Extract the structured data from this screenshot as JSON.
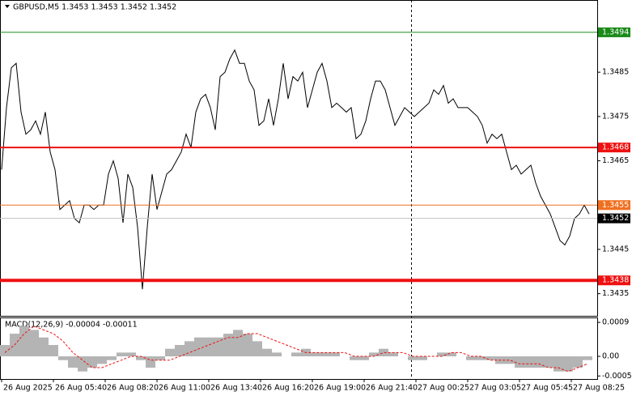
{
  "chart_data": [
    {
      "type": "line",
      "title": "GBPUSD,M5  1.3453 1.3453 1.3452 1.3452",
      "color": "#000000",
      "values": [
        1.3463,
        1.3477,
        1.3486,
        1.3487,
        1.3476,
        1.3471,
        1.3472,
        1.3474,
        1.3471,
        1.3476,
        1.3467,
        1.3463,
        1.3454,
        1.3455,
        1.3456,
        1.3452,
        1.3451,
        1.3455,
        1.3455,
        1.3454,
        1.3455,
        1.3455,
        1.3462,
        1.3465,
        1.3461,
        1.3451,
        1.3462,
        1.3459,
        1.345,
        1.3436,
        1.345,
        1.3462,
        1.3454,
        1.3458,
        1.3462,
        1.3463,
        1.3465,
        1.3467,
        1.3471,
        1.3468,
        1.3476,
        1.3479,
        1.348,
        1.3477,
        1.3472,
        1.3484,
        1.3485,
        1.3488,
        1.349,
        1.3487,
        1.3487,
        1.3483,
        1.3481,
        1.3473,
        1.3474,
        1.3479,
        1.3473,
        1.3479,
        1.3487,
        1.3479,
        1.3484,
        1.3483,
        1.3485,
        1.3477,
        1.3481,
        1.3485,
        1.3487,
        1.3483,
        1.3477,
        1.3478,
        1.3477,
        1.3476,
        1.3477,
        1.347,
        1.3471,
        1.3474,
        1.3479,
        1.3483,
        1.3483,
        1.3481,
        1.3477,
        1.3473,
        1.3475,
        1.3477,
        1.3476,
        1.3475,
        1.3476,
        1.3477,
        1.3478,
        1.3481,
        1.348,
        1.3482,
        1.3478,
        1.3479,
        1.3477,
        1.3477,
        1.3477,
        1.3476,
        1.3475,
        1.3473,
        1.3469,
        1.3471,
        1.347,
        1.3471,
        1.3467,
        1.3463,
        1.3464,
        1.3462,
        1.3463,
        1.3464,
        1.346,
        1.3457,
        1.3455,
        1.3453,
        1.345,
        1.3447,
        1.3446,
        1.3448,
        1.3452,
        1.3453,
        1.3455,
        1.3453
      ],
      "ylim": [
        1.343,
        1.35013
      ],
      "yticks": [
        1.3435,
        1.3445,
        1.3465,
        1.3475,
        1.3485
      ],
      "levels": [
        {
          "value": 1.3494,
          "color": "#1a8a1a"
        },
        {
          "value": 1.3468,
          "color": "#ee1111"
        },
        {
          "value": 1.3455,
          "color": "#f07020"
        },
        {
          "value": 1.3452,
          "color": "#000000"
        },
        {
          "value": 1.3438,
          "color": "#ee1111"
        }
      ],
      "x_labels": [
        "26 Aug 2025",
        "26 Aug 05:40",
        "26 Aug 08:20",
        "26 Aug 11:00",
        "26 Aug 13:40",
        "26 Aug 16:20",
        "26 Aug 19:00",
        "26 Aug 21:40",
        "27 Aug 00:25",
        "27 Aug 03:05",
        "27 Aug 05:45",
        "27 Aug 08:25"
      ]
    },
    {
      "type": "macd",
      "title": "MACD(12,26,9) -0.00004 -0.00011",
      "series": [
        {
          "color": "#b4b4b4",
          "values": [
            0.0003,
            0.0006,
            0.0008,
            0.0007,
            0.0005,
            0.0003,
            -0.0001,
            -0.0003,
            -0.0004,
            -0.0003,
            -0.0002,
            -0.0001,
            0.0001,
            0.0001,
            -0.0001,
            -0.0003,
            -0.0001,
            0.0002,
            0.0003,
            0.0004,
            0.0005,
            0.0005,
            0.0005,
            0.0006,
            0.0007,
            0.0006,
            0.0004,
            0.0002,
            0.0001,
            0,
            0.0001,
            0.0002,
            0.0001,
            0.0001,
            0.0001,
            0,
            -0.0001,
            -0.0001,
            0.0001,
            0.0002,
            0.0001,
            0,
            -0.0001,
            -0.0001,
            0,
            0.0001,
            0.0001,
            0,
            -0.0001,
            -0.0001,
            -0.0001,
            -0.0002,
            -0.0002,
            -0.0003,
            -0.0003,
            -0.0003,
            -0.0003,
            -0.0004,
            -0.0004,
            -0.0003,
            -0.0001
          ]
        },
        {
          "color": "#ee1111",
          "values": [
            0.0001,
            0.0003,
            0.0006,
            0.0008,
            0.0007,
            0.0006,
            0.0004,
            0.0001,
            -0.0001,
            -0.0003,
            -0.0003,
            -0.0002,
            -0.0001,
            0,
            0,
            -0.0001,
            -0.0001,
            -0.0001,
            0,
            0.0001,
            0.0002,
            0.0003,
            0.0004,
            0.0005,
            0.0005,
            0.0006,
            0.0006,
            0.0005,
            0.0004,
            0.0003,
            0.0002,
            0.0001,
            0.0001,
            0.0001,
            0.0001,
            0.0001,
            0,
            0,
            0,
            0.0001,
            0.0001,
            0.0001,
            0,
            0,
            0,
            0,
            0.0001,
            0.0001,
            0,
            0,
            -0.0001,
            -0.0001,
            -0.0001,
            -0.0002,
            -0.0002,
            -0.0002,
            -0.0003,
            -0.0003,
            -0.0004,
            -0.0003,
            -0.0002
          ]
        }
      ],
      "ylim": [
        -0.0006,
        0.00103
      ],
      "yticks": [
        0.0009,
        {
          "value": 0,
          "label": "0.00"
        },
        -0.00052
      ]
    }
  ]
}
